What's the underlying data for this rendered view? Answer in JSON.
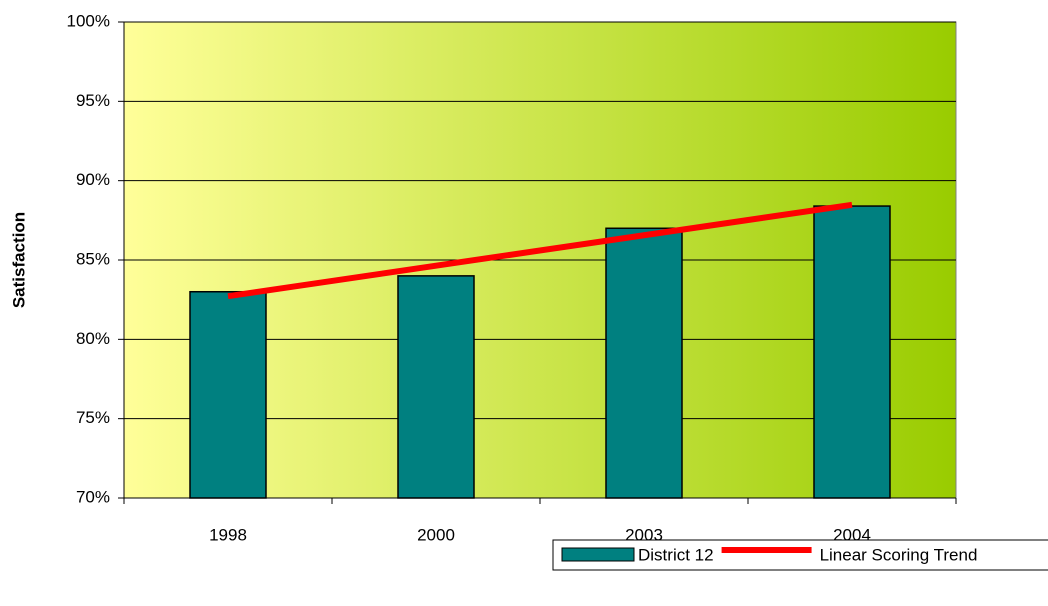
{
  "chart_data": {
    "type": "bar",
    "y_label": "Satisfaction",
    "categories": [
      "1998",
      "2000",
      "2003",
      "2004"
    ],
    "series": [
      {
        "name": "District 12",
        "color": "#008080",
        "values": [
          83,
          84,
          87,
          88.4
        ]
      },
      {
        "name": "Linear Scoring Trend",
        "color": "#ff0000",
        "type": "line",
        "values": [
          82.72,
          84.64,
          86.56,
          88.48
        ]
      }
    ],
    "ylim": [
      70,
      100
    ],
    "yticks": [
      {
        "value": 70,
        "label": "70%"
      },
      {
        "value": 75,
        "label": "75%"
      },
      {
        "value": 80,
        "label": "80%"
      },
      {
        "value": 85,
        "label": "85%"
      },
      {
        "value": 90,
        "label": "90%"
      },
      {
        "value": 95,
        "label": "95%"
      },
      {
        "value": 100,
        "label": "100%"
      }
    ],
    "grid": true,
    "background_gradient": [
      "#ffff99",
      "#99cc00"
    ]
  }
}
